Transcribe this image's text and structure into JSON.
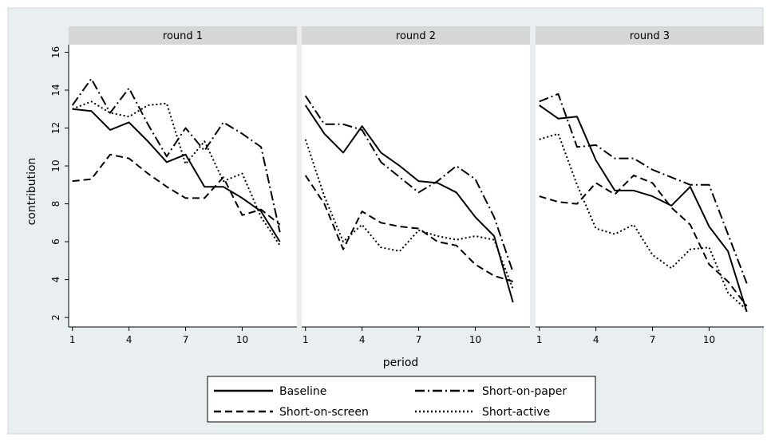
{
  "chart_data": {
    "type": "line",
    "ylabel": "contribution",
    "xlabel": "period",
    "x_ticks": [
      1,
      4,
      7,
      10
    ],
    "y_ticks": [
      2,
      4,
      6,
      8,
      10,
      12,
      14,
      16
    ],
    "xlim": [
      0.8,
      12.9
    ],
    "ylim": [
      1.5,
      16.4
    ],
    "legend": [
      "Baseline",
      "Short-on-paper",
      "Short-on-screen",
      "Short-active"
    ],
    "legend_position": "bottom",
    "panels": [
      {
        "title": "round 1",
        "series": [
          {
            "name": "Baseline",
            "style": "solid",
            "values": [
              13.0,
              12.9,
              11.9,
              12.3,
              11.3,
              10.2,
              10.6,
              8.9,
              8.9,
              8.3,
              7.6,
              6.0
            ]
          },
          {
            "name": "Short-on-paper",
            "style": "dashdot",
            "values": [
              13.2,
              14.6,
              12.8,
              14.1,
              12.2,
              10.5,
              12.0,
              10.8,
              12.3,
              11.7,
              11.0,
              6.5
            ]
          },
          {
            "name": "Short-on-screen",
            "style": "dashed",
            "values": [
              9.2,
              9.3,
              10.6,
              10.4,
              9.6,
              8.9,
              8.3,
              8.3,
              9.4,
              7.4,
              7.7,
              6.9
            ]
          },
          {
            "name": "Short-active",
            "style": "dotted",
            "values": [
              13.0,
              13.4,
              12.8,
              12.6,
              13.2,
              13.3,
              10.1,
              11.3,
              9.2,
              9.6,
              7.3,
              5.8
            ]
          }
        ]
      },
      {
        "title": "round 2",
        "series": [
          {
            "name": "Baseline",
            "style": "solid",
            "values": [
              13.2,
              11.7,
              10.7,
              12.1,
              10.7,
              10.0,
              9.2,
              9.1,
              8.6,
              7.3,
              6.3,
              2.8
            ]
          },
          {
            "name": "Short-on-paper",
            "style": "dashdot",
            "values": [
              13.7,
              12.2,
              12.2,
              11.9,
              10.2,
              9.4,
              8.6,
              9.2,
              10.0,
              9.3,
              7.3,
              4.4
            ]
          },
          {
            "name": "Short-on-screen",
            "style": "dashed",
            "values": [
              9.5,
              8.0,
              5.6,
              7.6,
              7.0,
              6.8,
              6.7,
              6.0,
              5.8,
              4.8,
              4.2,
              3.9
            ]
          },
          {
            "name": "Short-active",
            "style": "dotted",
            "values": [
              11.4,
              8.4,
              6.0,
              6.9,
              5.7,
              5.5,
              6.6,
              6.3,
              6.1,
              6.3,
              6.1,
              3.5
            ]
          }
        ]
      },
      {
        "title": "round 3",
        "series": [
          {
            "name": "Baseline",
            "style": "solid",
            "values": [
              13.2,
              12.5,
              12.6,
              10.3,
              8.7,
              8.7,
              8.4,
              7.9,
              8.9,
              6.8,
              5.5,
              2.3
            ]
          },
          {
            "name": "Short-on-paper",
            "style": "dashdot",
            "values": [
              13.4,
              13.8,
              11.0,
              11.1,
              10.4,
              10.4,
              9.8,
              9.4,
              9.0,
              9.0,
              6.4,
              3.8
            ]
          },
          {
            "name": "Short-on-screen",
            "style": "dashed",
            "values": [
              8.4,
              8.1,
              8.0,
              9.1,
              8.5,
              9.5,
              9.1,
              7.8,
              6.9,
              4.8,
              3.9,
              2.6
            ]
          },
          {
            "name": "Short-active",
            "style": "dotted",
            "values": [
              11.4,
              11.7,
              9.0,
              6.7,
              6.4,
              6.9,
              5.3,
              4.6,
              5.6,
              5.7,
              3.3,
              2.4
            ]
          }
        ]
      }
    ]
  }
}
